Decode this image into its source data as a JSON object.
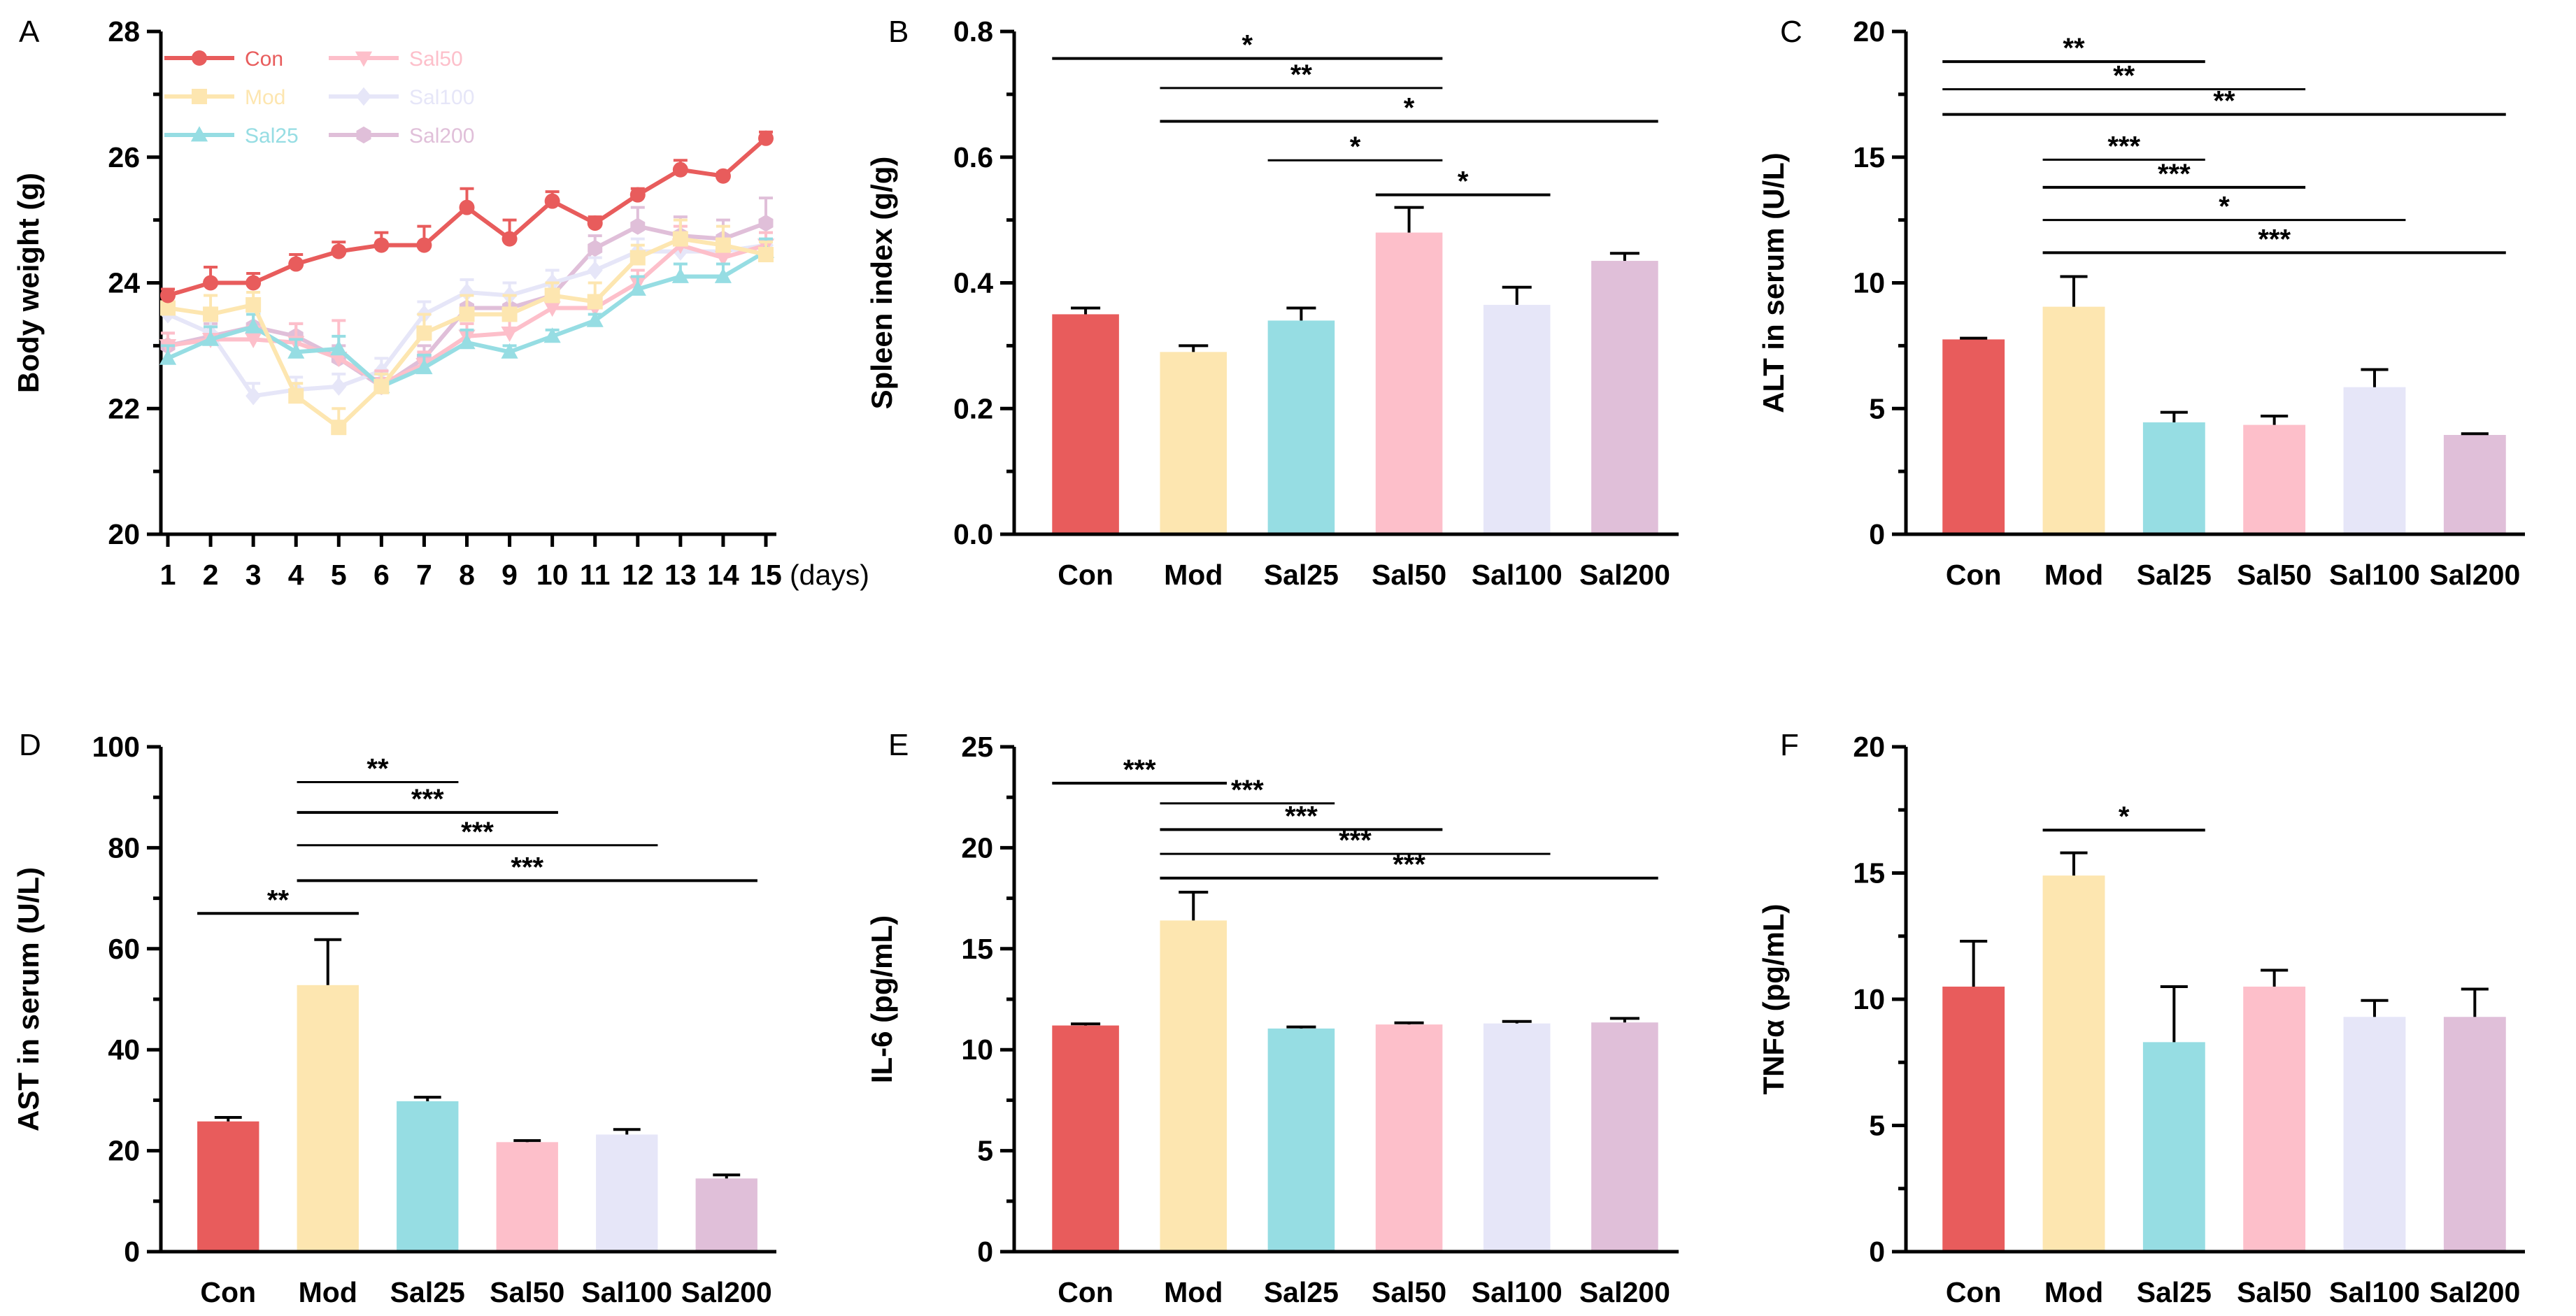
{
  "colors": {
    "Con": "#e85c5c",
    "Mod": "#fde6b0",
    "Sal25": "#96dde3",
    "Sal50": "#fdbfca",
    "Sal100": "#e6e6f8",
    "Sal200": "#e0bfd9"
  },
  "chart_data": [
    {
      "panel": "A",
      "type": "line",
      "ylabel": "Body weight (g)",
      "xlabel_suffix": "(days)",
      "x": [
        1,
        2,
        3,
        4,
        5,
        6,
        7,
        8,
        9,
        10,
        11,
        12,
        13,
        14,
        15
      ],
      "x_tick_labels": [
        "1",
        "2",
        "3",
        "4",
        "5",
        "6",
        "7",
        "8",
        "9",
        "10",
        "11",
        "12",
        "13",
        "14",
        "15"
      ],
      "ylim": [
        20,
        28
      ],
      "y_ticks": [
        20,
        22,
        24,
        26,
        28
      ],
      "series": [
        {
          "name": "Con",
          "values": [
            23.8,
            24.0,
            24.0,
            24.3,
            24.5,
            24.6,
            24.6,
            25.2,
            24.7,
            25.3,
            24.95,
            25.4,
            25.8,
            25.7,
            26.3
          ],
          "errors": [
            0.1,
            0.25,
            0.15,
            0.15,
            0.15,
            0.2,
            0.3,
            0.3,
            0.3,
            0.15,
            0.1,
            0.1,
            0.15,
            0.05,
            0.1
          ]
        },
        {
          "name": "Mod",
          "values": [
            23.6,
            23.5,
            23.65,
            22.2,
            21.7,
            22.35,
            23.2,
            23.5,
            23.5,
            23.8,
            23.7,
            24.4,
            24.7,
            24.6,
            24.45
          ],
          "errors": [
            0.3,
            0.3,
            0.2,
            0.2,
            0.3,
            0.2,
            0.3,
            0.3,
            0.3,
            0.2,
            0.3,
            0.2,
            0.3,
            0.3,
            0.2
          ]
        },
        {
          "name": "Sal25",
          "values": [
            22.8,
            23.1,
            23.3,
            22.9,
            22.95,
            22.35,
            22.65,
            23.05,
            22.9,
            23.15,
            23.4,
            23.9,
            24.1,
            24.1,
            24.5
          ],
          "errors": [
            0.2,
            0.2,
            0.2,
            0.2,
            0.2,
            0.2,
            0.2,
            0.2,
            0.1,
            0.1,
            0.1,
            0.2,
            0.2,
            0.2,
            0.2
          ]
        },
        {
          "name": "Sal50",
          "values": [
            23.0,
            23.1,
            23.1,
            23.05,
            22.8,
            22.4,
            22.7,
            23.15,
            23.2,
            23.6,
            23.6,
            24.0,
            24.6,
            24.4,
            24.6
          ],
          "errors": [
            0.2,
            0.2,
            0.2,
            0.3,
            0.6,
            0.2,
            0.2,
            0.2,
            0.3,
            0.2,
            0.2,
            0.2,
            0.3,
            0.3,
            0.2
          ]
        },
        {
          "name": "Sal100",
          "values": [
            23.5,
            23.2,
            22.2,
            22.3,
            22.35,
            22.6,
            23.5,
            23.85,
            23.8,
            24.0,
            24.2,
            24.5,
            24.5,
            24.5,
            24.6
          ],
          "errors": [
            0.2,
            0.2,
            0.2,
            0.2,
            0.2,
            0.2,
            0.2,
            0.2,
            0.2,
            0.2,
            0.2,
            0.2,
            0.2,
            0.2,
            0.2
          ]
        },
        {
          "name": "Sal200",
          "values": [
            23.0,
            23.15,
            23.3,
            23.15,
            22.8,
            22.35,
            22.8,
            23.6,
            23.6,
            23.8,
            24.55,
            24.9,
            24.75,
            24.7,
            24.95
          ],
          "errors": [
            0.2,
            0.2,
            0.2,
            0.2,
            0.2,
            0.2,
            0.2,
            0.2,
            0.2,
            0.2,
            0.2,
            0.3,
            0.3,
            0.3,
            0.4
          ]
        }
      ],
      "legend": [
        "Con",
        "Mod",
        "Sal25",
        "Sal50",
        "Sal100",
        "Sal200"
      ],
      "legend_position": "top-left"
    },
    {
      "panel": "B",
      "type": "bar",
      "ylabel": "Spleen index (g/g)",
      "categories": [
        "Con",
        "Mod",
        "Sal25",
        "Sal50",
        "Sal100",
        "Sal200"
      ],
      "values": [
        0.35,
        0.29,
        0.34,
        0.48,
        0.365,
        0.435
      ],
      "errors": [
        0.01,
        0.01,
        0.02,
        0.04,
        0.028,
        0.012
      ],
      "ylim": [
        0.0,
        0.8
      ],
      "y_ticks": [
        0.0,
        0.2,
        0.4,
        0.6,
        0.8
      ],
      "y_tick_labels": [
        "0.0",
        "0.2",
        "0.4",
        "0.6",
        "0.8"
      ],
      "significance": [
        {
          "from": 0,
          "to": 3,
          "label": "*",
          "y": 0.757
        },
        {
          "from": 1,
          "to": 3,
          "label": "**",
          "y": 0.71
        },
        {
          "from": 1,
          "to": 5,
          "label": "*",
          "y": 0.657
        },
        {
          "from": 2,
          "to": 3,
          "label": "*",
          "y": 0.595
        },
        {
          "from": 3,
          "to": 4,
          "label": "*",
          "y": 0.54
        }
      ]
    },
    {
      "panel": "C",
      "type": "bar",
      "ylabel": "ALT in serum (U/L)",
      "categories": [
        "Con",
        "Mod",
        "Sal25",
        "Sal50",
        "Sal100",
        "Sal200"
      ],
      "values": [
        7.75,
        9.05,
        4.45,
        4.35,
        5.85,
        3.95
      ],
      "errors": [
        0.05,
        1.2,
        0.4,
        0.35,
        0.7,
        0.05
      ],
      "ylim": [
        0,
        20
      ],
      "y_ticks": [
        0,
        5,
        10,
        15,
        20
      ],
      "y_tick_labels": [
        "0",
        "5",
        "10",
        "15",
        "20"
      ],
      "significance": [
        {
          "from": 0,
          "to": 2,
          "label": "**",
          "y": 18.8
        },
        {
          "from": 0,
          "to": 3,
          "label": "**",
          "y": 17.7
        },
        {
          "from": 0,
          "to": 5,
          "label": "**",
          "y": 16.7
        },
        {
          "from": 1,
          "to": 2,
          "label": "***",
          "y": 14.9
        },
        {
          "from": 1,
          "to": 3,
          "label": "***",
          "y": 13.8
        },
        {
          "from": 1,
          "to": 4,
          "label": "*",
          "y": 12.5
        },
        {
          "from": 1,
          "to": 5,
          "label": "***",
          "y": 11.2
        }
      ]
    },
    {
      "panel": "D",
      "type": "bar",
      "ylabel": "AST in serum (U/L)",
      "categories": [
        "Con",
        "Mod",
        "Sal25",
        "Sal50",
        "Sal100",
        "Sal200"
      ],
      "values": [
        25.8,
        52.8,
        29.8,
        21.7,
        23.2,
        14.5
      ],
      "errors": [
        0.8,
        9.0,
        0.8,
        0.3,
        1.0,
        0.7
      ],
      "ylim": [
        0,
        100
      ],
      "y_ticks": [
        0,
        20,
        40,
        60,
        80,
        100
      ],
      "y_tick_labels": [
        "0",
        "20",
        "40",
        "60",
        "80",
        "100"
      ],
      "significance": [
        {
          "from": 0,
          "to": 1,
          "label": "**",
          "y": 67
        },
        {
          "from": 1,
          "to": 2,
          "label": "**",
          "y": 93
        },
        {
          "from": 1,
          "to": 3,
          "label": "***",
          "y": 87
        },
        {
          "from": 1,
          "to": 4,
          "label": "***",
          "y": 80.5
        },
        {
          "from": 1,
          "to": 5,
          "label": "***",
          "y": 73.5
        }
      ]
    },
    {
      "panel": "E",
      "type": "bar",
      "ylabel": "IL-6 (pg/mL)",
      "categories": [
        "Con",
        "Mod",
        "Sal25",
        "Sal50",
        "Sal100",
        "Sal200"
      ],
      "values": [
        11.2,
        16.4,
        11.05,
        11.25,
        11.3,
        11.35
      ],
      "errors": [
        0.08,
        1.4,
        0.08,
        0.08,
        0.1,
        0.2
      ],
      "ylim": [
        0,
        25
      ],
      "y_ticks": [
        0,
        5,
        10,
        15,
        20,
        25
      ],
      "y_tick_labels": [
        "0",
        "5",
        "10",
        "15",
        "20",
        "25"
      ],
      "significance": [
        {
          "from": 0,
          "to": 1,
          "label": "***",
          "y": 23.2
        },
        {
          "from": 1,
          "to": 2,
          "label": "***",
          "y": 22.2
        },
        {
          "from": 1,
          "to": 3,
          "label": "***",
          "y": 20.9
        },
        {
          "from": 1,
          "to": 4,
          "label": "***",
          "y": 19.7
        },
        {
          "from": 1,
          "to": 5,
          "label": "***",
          "y": 18.5
        }
      ]
    },
    {
      "panel": "F",
      "type": "bar",
      "ylabel": "TNFα (pg/mL)",
      "categories": [
        "Con",
        "Mod",
        "Sal25",
        "Sal50",
        "Sal100",
        "Sal200"
      ],
      "values": [
        10.5,
        14.9,
        8.3,
        10.5,
        9.3,
        9.3
      ],
      "errors": [
        1.8,
        0.9,
        2.2,
        0.65,
        0.65,
        1.1
      ],
      "ylim": [
        0,
        20
      ],
      "y_ticks": [
        0,
        5,
        10,
        15,
        20
      ],
      "y_tick_labels": [
        "0",
        "5",
        "10",
        "15",
        "20"
      ],
      "significance": [
        {
          "from": 1,
          "to": 2,
          "label": "*",
          "y": 16.7
        }
      ]
    }
  ]
}
